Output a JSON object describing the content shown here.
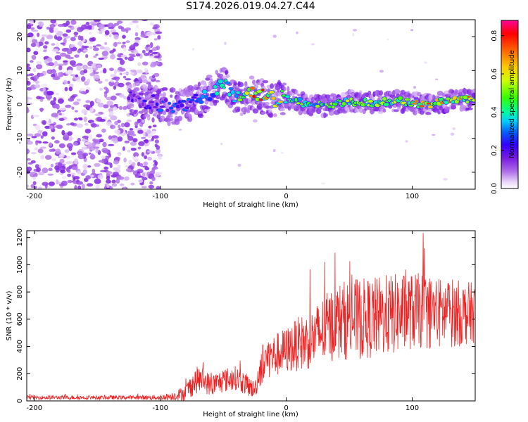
{
  "page_title": "S174.2026.019.04.27.C44",
  "chart_data": [
    {
      "type": "heatmap",
      "title": "S174.2026.019.04.27.C44",
      "xlabel": "Height of straight line (km)",
      "ylabel": "Frequency (Hz)",
      "xlim": [
        -206,
        150
      ],
      "ylim": [
        -25,
        25
      ],
      "x_ticks": [
        -200,
        -100,
        0,
        100
      ],
      "y_ticks": [
        -20,
        -10,
        0,
        10,
        20
      ],
      "colorbar": {
        "label": "Normalized spectral amplitude",
        "range": [
          0.0,
          0.88
        ],
        "ticks": [
          0.0,
          0.2,
          0.4,
          0.6,
          0.8
        ],
        "colormap": [
          "#ffffff",
          "#e8d4f8",
          "#b070e8",
          "#7a1ae0",
          "#3300ff",
          "#0066ff",
          "#00ccff",
          "#00ff99",
          "#33ff00",
          "#ccff00",
          "#ffcc00",
          "#ff6600",
          "#ff0000",
          "#ff0099"
        ]
      },
      "ridge": {
        "x": [
          -120,
          -100,
          -85,
          -70,
          -58,
          -50,
          -42,
          -35,
          -28,
          -20,
          -10,
          0,
          15,
          30,
          50,
          70,
          90,
          110,
          130,
          150
        ],
        "freq": [
          2,
          0,
          -1,
          1,
          4,
          6,
          3,
          2,
          3,
          2.5,
          1.5,
          2,
          0,
          -0.5,
          1,
          0.5,
          1,
          0,
          1,
          1.5
        ],
        "peak_amplitude": [
          0.2,
          0.3,
          0.3,
          0.35,
          0.45,
          0.5,
          0.45,
          0.55,
          0.75,
          0.85,
          0.7,
          0.6,
          0.5,
          0.55,
          0.6,
          0.62,
          0.65,
          0.8,
          0.7,
          0.75
        ]
      },
      "noise_region": {
        "x_range": [
          -206,
          -100
        ],
        "freq_range": [
          -25,
          25
        ],
        "amplitude": 0.1
      }
    },
    {
      "type": "line",
      "xlabel": "Height of straight line (km)",
      "ylabel": "SNR (10 * v/v)",
      "xlim": [
        -206,
        150
      ],
      "ylim": [
        0,
        1250
      ],
      "x_ticks": [
        -200,
        -100,
        0,
        100
      ],
      "y_ticks": [
        0,
        200,
        400,
        600,
        800,
        1000,
        1200
      ],
      "series": [
        {
          "name": "SNR",
          "color": "#ee2222",
          "x": [
            -206,
            -180,
            -150,
            -120,
            -100,
            -90,
            -80,
            -75,
            -70,
            -65,
            -60,
            -50,
            -40,
            -30,
            -25,
            -20,
            -15,
            -10,
            0,
            10,
            20,
            30,
            40,
            50,
            60,
            70,
            80,
            90,
            100,
            110,
            120,
            130,
            140,
            150
          ],
          "y": [
            25,
            25,
            25,
            25,
            25,
            35,
            60,
            120,
            160,
            150,
            110,
            150,
            170,
            110,
            80,
            260,
            320,
            330,
            370,
            420,
            450,
            520,
            580,
            600,
            600,
            610,
            630,
            640,
            660,
            660,
            640,
            650,
            640,
            650
          ],
          "noise_amplitude": [
            15,
            15,
            15,
            15,
            20,
            30,
            60,
            90,
            100,
            90,
            80,
            90,
            90,
            80,
            60,
            150,
            160,
            160,
            170,
            200,
            220,
            260,
            280,
            300,
            300,
            300,
            300,
            300,
            280,
            280,
            270,
            260,
            240,
            220
          ]
        }
      ]
    }
  ]
}
